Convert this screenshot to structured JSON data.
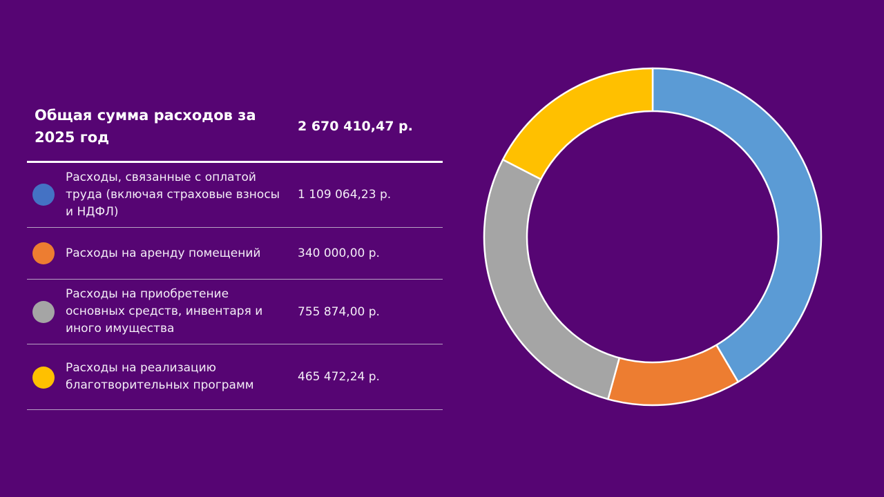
{
  "table": {
    "header": {
      "title": "Общая сумма расходов за 2025 год",
      "total": "2 670 410,47 р."
    },
    "rows": [
      {
        "label": "Расходы, связанные с оплатой труда (включая страховые взносы и НДФЛ)",
        "amount": "1 109 064,23 р.",
        "color": "#4472C4"
      },
      {
        "label": "Расходы на аренду помещений",
        "amount": "340 000,00 р.",
        "color": "#ED7D31"
      },
      {
        "label": "Расходы на приобретение основных средств, инвентаря и иного имущества",
        "amount": "755 874,00 р.",
        "color": "#A5A5A5"
      },
      {
        "label": "Расходы на реализацию благотворительных программ",
        "amount": "465 472,24 р.",
        "color": "#FFC000"
      }
    ]
  },
  "colors": {
    "background": "#560573",
    "divider": "#B9A3C4"
  },
  "chart_data": {
    "type": "pie",
    "variant": "doughnut",
    "title": "",
    "categories": [
      "Расходы, связанные с оплатой труда (включая страховые взносы и НДФЛ)",
      "Расходы на аренду помещений",
      "Расходы на приобретение основных средств, инвентаря и иного имущества",
      "Расходы на реализацию благотворительных программ"
    ],
    "values": [
      1109064.23,
      340000.0,
      755874.0,
      465472.24
    ],
    "colors": [
      "#5B9BD5",
      "#ED7D31",
      "#A5A5A5",
      "#FFC000"
    ],
    "start_angle_deg": 0,
    "direction": "clockwise",
    "legend": "left (table)"
  }
}
